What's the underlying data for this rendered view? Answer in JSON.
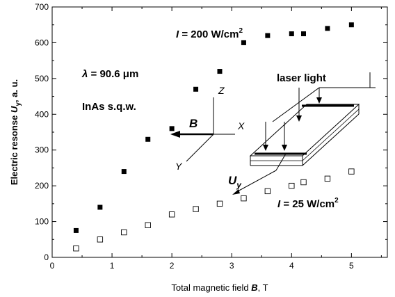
{
  "chart_data": {
    "type": "scatter",
    "xlabel": "Total magnetic field B, T",
    "xlabel_parts": {
      "pre": "Total magnetic field ",
      "sym": "B",
      "post": ", T"
    },
    "ylabel": "Electric resonse U_y, a. u.",
    "ylabel_parts": {
      "pre": "Electric resonse ",
      "sym": "U",
      "sub": "y",
      "post": ", a. u."
    },
    "xlim": [
      0,
      5.6
    ],
    "ylim": [
      0,
      700
    ],
    "xticks": [
      "0",
      "1",
      "2",
      "3",
      "4",
      "5"
    ],
    "yticks": [
      "0",
      "100",
      "200",
      "300",
      "400",
      "500",
      "600",
      "700"
    ],
    "grid": false,
    "series": [
      {
        "name": "I = 200 W/cm2",
        "marker": "filled-square",
        "x": [
          0.4,
          0.8,
          1.2,
          1.6,
          2.0,
          2.4,
          2.8,
          3.2,
          3.6,
          4.0,
          4.2,
          4.6,
          5.0
        ],
        "y": [
          75,
          140,
          240,
          330,
          360,
          470,
          520,
          600,
          620,
          625,
          625,
          640,
          650
        ]
      },
      {
        "name": "I = 25 W/cm2",
        "marker": "open-square",
        "x": [
          0.4,
          0.8,
          1.2,
          1.6,
          2.0,
          2.4,
          2.8,
          3.2,
          3.6,
          4.0,
          4.2,
          4.6,
          5.0
        ],
        "y": [
          25,
          50,
          70,
          90,
          120,
          135,
          150,
          165,
          185,
          200,
          210,
          220,
          240
        ]
      }
    ],
    "annotations": {
      "intensity_high": {
        "pre": "I",
        "mid": " = 200 W/cm",
        "sup": "2"
      },
      "intensity_low": {
        "pre": "I",
        "mid": " = 25 W/cm",
        "sup": "2"
      },
      "wavelength": {
        "sym": "λ",
        "rest": " = 90.6 μm"
      },
      "sample": "InAs s.q.w.",
      "laser": "laser light",
      "field_vector": "B",
      "voltage": {
        "sym": "U",
        "sub": "y"
      },
      "axis_x": "X",
      "axis_y": "Y",
      "axis_z": "Z"
    }
  }
}
